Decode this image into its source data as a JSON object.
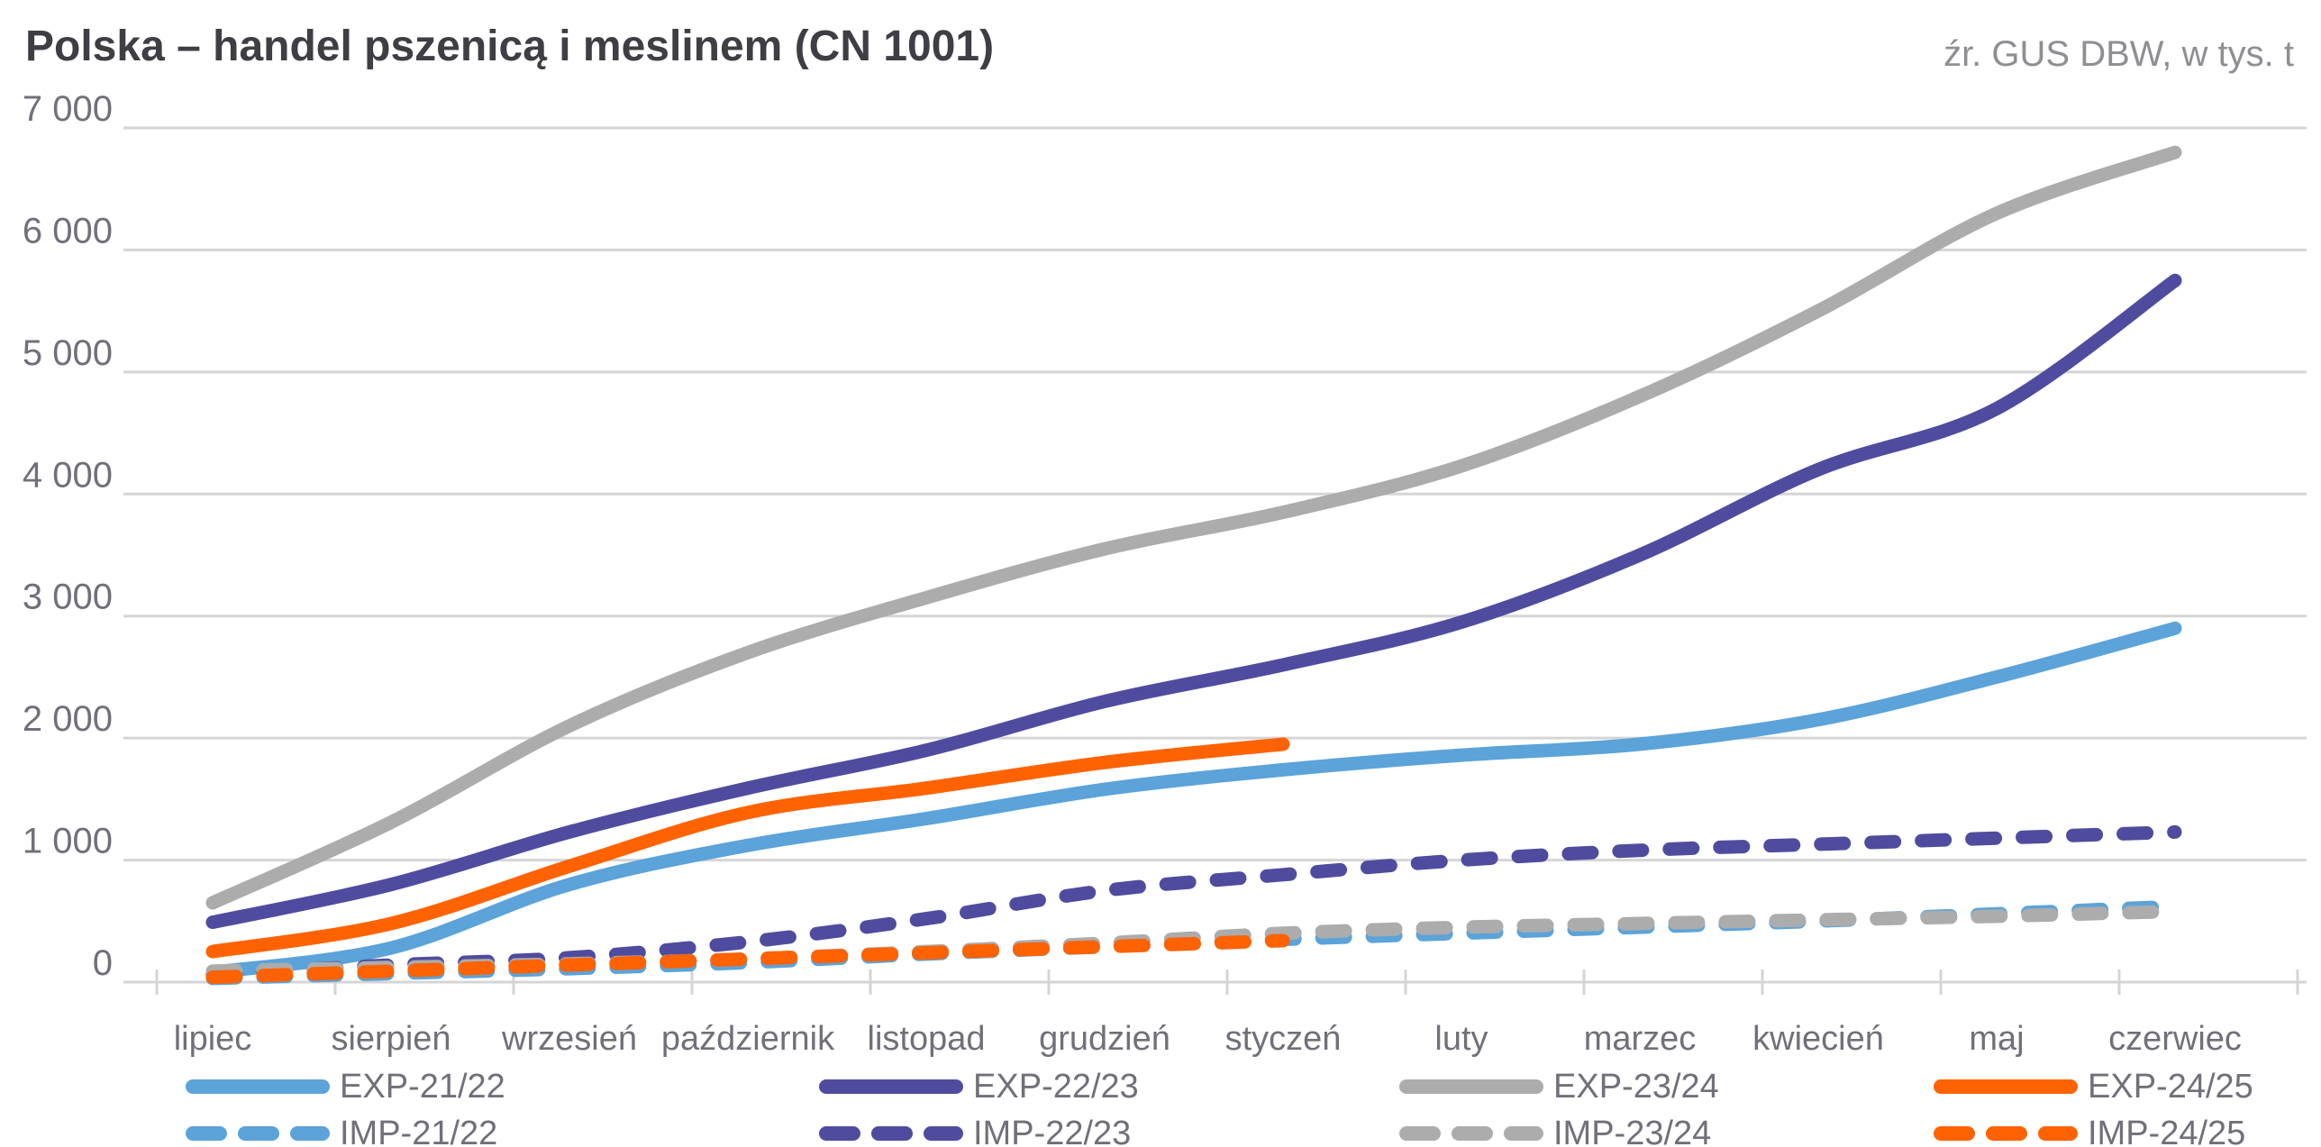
{
  "title": "Polska – handel pszenicą i meslinem (CN 1001)",
  "source_note": "źr. GUS DBW, w tys. t",
  "colors": {
    "blue": "#5BA3D9",
    "purple": "#4F4C9F",
    "gray": "#ACACAC",
    "orange": "#FF6200",
    "title_text": "#3E3E44",
    "axis_text": "#70707A",
    "source_text": "#8E8E93",
    "gridline": "#D5D5D5"
  },
  "chart_data": {
    "type": "line",
    "title": "Polska – handel pszenicą i meslinem (CN 1001)",
    "unit": "tys. t",
    "x_categories": [
      "lipiec",
      "sierpień",
      "wrzesień",
      "październik",
      "listopad",
      "grudzień",
      "styczeń",
      "luty",
      "marzec",
      "kwiecień",
      "maj",
      "czerwiec"
    ],
    "ylim": [
      0,
      7000
    ],
    "yticks": [
      {
        "value": 0,
        "label": "0"
      },
      {
        "value": 1000,
        "label": "1 000"
      },
      {
        "value": 2000,
        "label": "2 000"
      },
      {
        "value": 3000,
        "label": "3 000"
      },
      {
        "value": 4000,
        "label": "4 000"
      },
      {
        "value": 5000,
        "label": "5 000"
      },
      {
        "value": 6000,
        "label": "6 000"
      },
      {
        "value": 7000,
        "label": "7 000"
      }
    ],
    "grid": "horizontal",
    "legend_position": "bottom",
    "series": [
      {
        "name": "EXP-21/22",
        "style": "solid",
        "color_key": "blue",
        "legend_row": 1,
        "legend_col": 1,
        "values": [
          80,
          280,
          800,
          1120,
          1340,
          1580,
          1740,
          1860,
          1950,
          2150,
          2500,
          2900
        ]
      },
      {
        "name": "EXP-22/23",
        "style": "solid",
        "color_key": "purple",
        "legend_row": 1,
        "legend_col": 2,
        "values": [
          490,
          800,
          1230,
          1590,
          1900,
          2300,
          2600,
          2950,
          3500,
          4200,
          4700,
          5750
        ]
      },
      {
        "name": "EXP-23/24",
        "style": "solid",
        "color_key": "gray",
        "legend_row": 1,
        "legend_col": 3,
        "values": [
          650,
          1310,
          2100,
          2700,
          3150,
          3550,
          3850,
          4230,
          4800,
          5500,
          6300,
          6800
        ]
      },
      {
        "name": "EXP-24/25",
        "style": "solid",
        "color_key": "orange",
        "legend_row": 1,
        "legend_col": 4,
        "values": [
          250,
          480,
          950,
          1390,
          1590,
          1800,
          1950
        ]
      },
      {
        "name": "IMP-21/22",
        "style": "dashed",
        "color_key": "blue",
        "legend_row": 2,
        "legend_col": 1,
        "values": [
          30,
          70,
          110,
          160,
          230,
          290,
          350,
          400,
          450,
          500,
          560,
          620
        ]
      },
      {
        "name": "IMP-22/23",
        "style": "dashed",
        "color_key": "purple",
        "legend_row": 2,
        "legend_col": 2,
        "values": [
          60,
          140,
          200,
          330,
          520,
          750,
          880,
          1000,
          1080,
          1130,
          1180,
          1230
        ]
      },
      {
        "name": "IMP-23/24",
        "style": "dashed",
        "color_key": "gray",
        "legend_row": 2,
        "legend_col": 3,
        "values": [
          90,
          120,
          150,
          190,
          250,
          320,
          400,
          450,
          480,
          510,
          540,
          580
        ]
      },
      {
        "name": "IMP-24/25",
        "style": "dashed",
        "color_key": "orange",
        "legend_row": 2,
        "legend_col": 4,
        "values": [
          40,
          90,
          140,
          190,
          240,
          290,
          340
        ]
      }
    ]
  }
}
